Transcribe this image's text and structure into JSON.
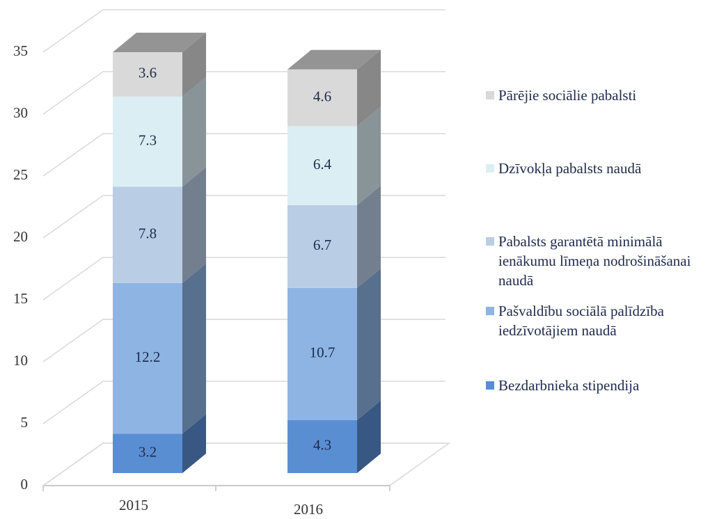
{
  "chart_data": {
    "type": "bar3d_stacked",
    "categories": [
      "2015",
      "2016"
    ],
    "series": [
      {
        "name": "Bezdarbnieka stipendija",
        "color": "#5a8ed3",
        "values": [
          3.2,
          4.3
        ]
      },
      {
        "name": "Pašvaldību sociālā palīdzība iedzīvotājiem naudā",
        "color": "#8db4e3",
        "values": [
          12.2,
          10.7
        ]
      },
      {
        "name": "Pabalsts garantētā minimālā ienākumu līmeņa nodrošināšanai naudā",
        "color": "#b9cde5",
        "values": [
          7.8,
          6.7
        ]
      },
      {
        "name": "Dzīvokļa pabalsts naudā",
        "color": "#dbeef4",
        "values": [
          7.3,
          6.4
        ]
      },
      {
        "name": "Pārējie sociālie pabalsti",
        "color": "#d9d9d9",
        "values": [
          3.6,
          4.6
        ]
      }
    ],
    "ylim": [
      0,
      35
    ],
    "yticks": [
      0,
      5,
      10,
      15,
      20,
      25,
      30,
      35
    ],
    "grid": true,
    "legend": "right"
  }
}
